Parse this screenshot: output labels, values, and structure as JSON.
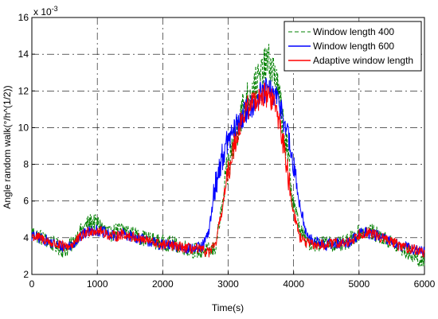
{
  "chart_data": {
    "type": "line",
    "title": "",
    "xlabel": "Time(s)",
    "ylabel": "Angle random walk(°/h^(1/2))",
    "y_exponent_label": "x 10",
    "y_exponent_power": "-3",
    "xlim": [
      0,
      6000
    ],
    "ylim": [
      2,
      16
    ],
    "xticks": [
      "0",
      "1000",
      "2000",
      "3000",
      "4000",
      "5000",
      "6000"
    ],
    "yticks": [
      "2",
      "4",
      "6",
      "8",
      "10",
      "12",
      "14",
      "16"
    ],
    "grid": true,
    "legend_position": "top-right",
    "x": [
      0,
      100,
      200,
      300,
      400,
      500,
      600,
      700,
      800,
      900,
      1000,
      1100,
      1200,
      1300,
      1400,
      1500,
      1600,
      1700,
      1800,
      1900,
      2000,
      2100,
      2200,
      2300,
      2400,
      2500,
      2600,
      2700,
      2800,
      2900,
      3000,
      3100,
      3200,
      3300,
      3400,
      3500,
      3600,
      3700,
      3800,
      3900,
      4000,
      4100,
      4200,
      4300,
      4400,
      4500,
      4600,
      4700,
      4800,
      4900,
      5000,
      5100,
      5200,
      5300,
      5400,
      5500,
      5600,
      5700,
      5800,
      5900,
      6000
    ],
    "series": [
      {
        "name": "Window length 400",
        "color": "#008000",
        "dash": "dashed",
        "values": [
          4.3,
          4.1,
          3.9,
          3.7,
          3.5,
          3.3,
          3.6,
          4.1,
          4.6,
          4.9,
          4.8,
          4.5,
          4.2,
          4.4,
          4.5,
          4.3,
          4.1,
          4.0,
          3.9,
          3.8,
          3.7,
          3.7,
          3.6,
          3.5,
          3.4,
          3.3,
          3.3,
          3.3,
          3.4,
          5.5,
          7.8,
          9.5,
          10.8,
          11.6,
          12.2,
          12.8,
          13.6,
          13.1,
          11.2,
          8.6,
          6.0,
          4.4,
          3.8,
          3.7,
          3.7,
          3.7,
          3.7,
          3.6,
          3.7,
          4.0,
          4.3,
          4.4,
          4.3,
          4.1,
          3.9,
          3.7,
          3.5,
          3.3,
          3.1,
          2.9,
          2.5
        ]
      },
      {
        "name": "Window length 600",
        "color": "#0000ff",
        "dash": "solid",
        "values": [
          4.1,
          4.0,
          3.9,
          3.7,
          3.6,
          3.5,
          3.6,
          3.9,
          4.2,
          4.4,
          4.4,
          4.3,
          4.1,
          4.1,
          4.2,
          4.1,
          4.0,
          3.9,
          3.8,
          3.7,
          3.6,
          3.6,
          3.5,
          3.5,
          3.4,
          3.4,
          3.5,
          4.2,
          6.8,
          8.3,
          9.3,
          9.9,
          10.5,
          11.0,
          11.4,
          11.8,
          12.0,
          11.8,
          11.2,
          9.8,
          7.8,
          5.8,
          4.1,
          3.8,
          3.7,
          3.6,
          3.7,
          3.7,
          3.7,
          3.9,
          4.2,
          4.3,
          4.2,
          4.1,
          3.9,
          3.8,
          3.6,
          3.5,
          3.4,
          3.3,
          3.3
        ]
      },
      {
        "name": "Adaptive window length",
        "color": "#ff0000",
        "dash": "solid",
        "values": [
          4.1,
          4.0,
          3.9,
          3.7,
          3.6,
          3.5,
          3.6,
          3.9,
          4.2,
          4.4,
          4.4,
          4.3,
          4.1,
          4.1,
          4.2,
          4.1,
          4.0,
          3.9,
          3.8,
          3.7,
          3.6,
          3.6,
          3.5,
          3.5,
          3.4,
          3.4,
          3.3,
          3.2,
          3.5,
          5.4,
          7.5,
          9.2,
          10.4,
          11.1,
          11.5,
          11.7,
          11.8,
          11.4,
          10.1,
          7.8,
          5.4,
          4.0,
          3.7,
          3.6,
          3.6,
          3.6,
          3.7,
          3.7,
          3.7,
          3.9,
          4.2,
          4.3,
          4.2,
          4.1,
          3.9,
          3.8,
          3.6,
          3.5,
          3.4,
          3.3,
          3.2
        ]
      }
    ]
  }
}
